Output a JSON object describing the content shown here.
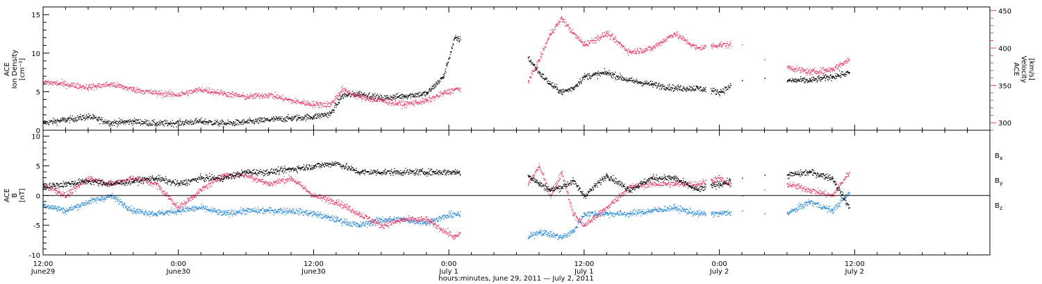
{
  "colors": {
    "black": "#000000",
    "pink": "#e8386a",
    "blue": "#1f84d8"
  },
  "xlabel": "hours:minutes, June 29, 2011 — July  2, 2011",
  "xlim": [
    0,
    84
  ],
  "x_ticks": [
    {
      "h": 0,
      "time": "12:00",
      "date": "June29"
    },
    {
      "h": 12,
      "time": "0:00",
      "date": "June30"
    },
    {
      "h": 24,
      "time": "12:00",
      "date": "June30"
    },
    {
      "h": 36,
      "time": "0:00",
      "date": "July 1"
    },
    {
      "h": 48,
      "time": "12:00",
      "date": "July 1"
    },
    {
      "h": 60,
      "time": "0:00",
      "date": "July 2"
    },
    {
      "h": 72,
      "time": "12:00",
      "date": "July 2"
    }
  ],
  "chart_data": [
    {
      "type": "scatter",
      "panel": "top",
      "ylabel_lines": [
        "ACE",
        "Ion Density",
        "[cm⁻³]"
      ],
      "ylim": [
        0,
        16
      ],
      "y_ticks": [
        0,
        5,
        10,
        15
      ],
      "y2label_lines": [
        "ACE",
        "Velocity",
        "[km/s]"
      ],
      "y2lim": [
        290,
        455
      ],
      "y2_ticks": [
        300,
        350,
        400,
        450
      ],
      "series": [
        {
          "axis": "left",
          "color": "#000000",
          "x": [
            0,
            2,
            4,
            6,
            8,
            10,
            12,
            14,
            16,
            18,
            20,
            22,
            24,
            25.5,
            26.5,
            28,
            30,
            32,
            34,
            35.5,
            36.5,
            43,
            44,
            45,
            46,
            47,
            48,
            50,
            52,
            54,
            56,
            58,
            60,
            62,
            64,
            66,
            68,
            70,
            71.5
          ],
          "y": [
            1.0,
            1.4,
            1.8,
            1.0,
            1.2,
            0.9,
            1.0,
            1.2,
            0.9,
            1.1,
            1.4,
            1.6,
            1.8,
            2.2,
            4.5,
            4.8,
            4.2,
            4.5,
            4.8,
            7.0,
            12.0,
            9.5,
            7.5,
            6.0,
            5.0,
            5.5,
            7.0,
            7.5,
            6.5,
            6.0,
            5.5,
            5.5,
            5.0,
            6.5,
            6.8,
            6.5,
            6.5,
            7.0,
            7.5
          ]
        },
        {
          "axis": "right",
          "color": "#e8386a",
          "x": [
            0,
            2,
            4,
            6,
            8,
            10,
            12,
            14,
            16,
            18,
            20,
            22,
            24,
            25.5,
            26.5,
            28,
            30,
            32,
            34,
            35.5,
            36.5,
            43,
            44,
            45,
            46,
            47,
            48,
            50,
            52,
            54,
            56,
            58,
            60,
            62,
            64,
            66,
            68,
            70,
            71.5
          ],
          "y": [
            355,
            352,
            348,
            352,
            345,
            340,
            338,
            345,
            340,
            335,
            338,
            330,
            325,
            325,
            345,
            335,
            330,
            325,
            330,
            340,
            345,
            355,
            385,
            420,
            440,
            420,
            405,
            420,
            395,
            400,
            420,
            400,
            405,
            405,
            385,
            375,
            368,
            372,
            385
          ]
        }
      ]
    },
    {
      "type": "scatter",
      "panel": "bottom",
      "ylabel_lines": [
        "ACE",
        "B",
        "[nT]"
      ],
      "ylim": [
        -10,
        11
      ],
      "y_ticks": [
        -10,
        -5,
        0,
        5,
        10
      ],
      "series": [
        {
          "name": "Bx",
          "color": "#000000",
          "x": [
            0,
            2,
            4,
            6,
            8,
            10,
            12,
            14,
            16,
            18,
            20,
            22,
            24,
            26,
            28,
            30,
            32,
            34,
            36.5,
            43,
            44,
            45,
            46,
            47,
            48,
            50,
            52,
            54,
            56,
            58,
            60,
            62,
            64,
            66,
            68,
            70,
            71.5
          ],
          "y": [
            1.5,
            2.0,
            2.5,
            2.0,
            2.5,
            3.0,
            2.0,
            3.0,
            3.0,
            4.0,
            4.0,
            4.5,
            5.0,
            5.5,
            4.0,
            4.0,
            4.0,
            4.0,
            4.0,
            3.5,
            2.0,
            1.0,
            1.5,
            2.5,
            0.0,
            3.5,
            1.0,
            3.0,
            3.0,
            1.0,
            2.0,
            3.0,
            3.5,
            3.5,
            4.0,
            3.0,
            -2.0
          ]
        },
        {
          "name": "By",
          "color": "#1f84d8",
          "x": [
            0,
            2,
            4,
            6,
            8,
            10,
            12,
            14,
            16,
            18,
            20,
            22,
            24,
            26,
            28,
            30,
            32,
            34,
            36.5,
            43,
            44,
            45,
            46,
            47,
            48,
            50,
            52,
            54,
            56,
            58,
            60,
            62,
            64,
            66,
            68,
            70,
            71.5
          ],
          "y": [
            -1.5,
            -2.5,
            -1.0,
            0.0,
            -2.5,
            -3.0,
            -2.5,
            -2.0,
            -3.0,
            -2.5,
            -2.5,
            -2.5,
            -3.0,
            -4.0,
            -5.0,
            -4.0,
            -4.0,
            -4.5,
            -3.0,
            -7.0,
            -6.0,
            -6.5,
            -7.0,
            -6.0,
            -3.0,
            -3.0,
            -3.0,
            -2.5,
            -2.0,
            -3.0,
            -3.0,
            -2.5,
            -3.0,
            -3.0,
            -1.0,
            -2.5,
            0.5
          ]
        },
        {
          "name": "Bz",
          "color": "#e8386a",
          "x": [
            0,
            2,
            4,
            6,
            8,
            10,
            12,
            14,
            16,
            18,
            20,
            22,
            24,
            26,
            28,
            30,
            32,
            34,
            36.5,
            43,
            44,
            45,
            46,
            47,
            48,
            50,
            52,
            54,
            56,
            58,
            60,
            62,
            64,
            66,
            68,
            70,
            71.5
          ],
          "y": [
            2.0,
            0.0,
            3.0,
            2.0,
            3.0,
            2.0,
            -2.0,
            1.0,
            3.5,
            3.5,
            2.0,
            3.0,
            0.0,
            -1.0,
            -3.0,
            -5.0,
            -4.0,
            -4.0,
            -7.0,
            2.0,
            5.0,
            0.0,
            4.0,
            -3.0,
            -5.0,
            -2.0,
            1.5,
            2.0,
            2.0,
            2.0,
            3.0,
            0.0,
            1.0,
            2.0,
            1.0,
            0.0,
            4.0
          ]
        }
      ],
      "legend_position": "right"
    }
  ]
}
